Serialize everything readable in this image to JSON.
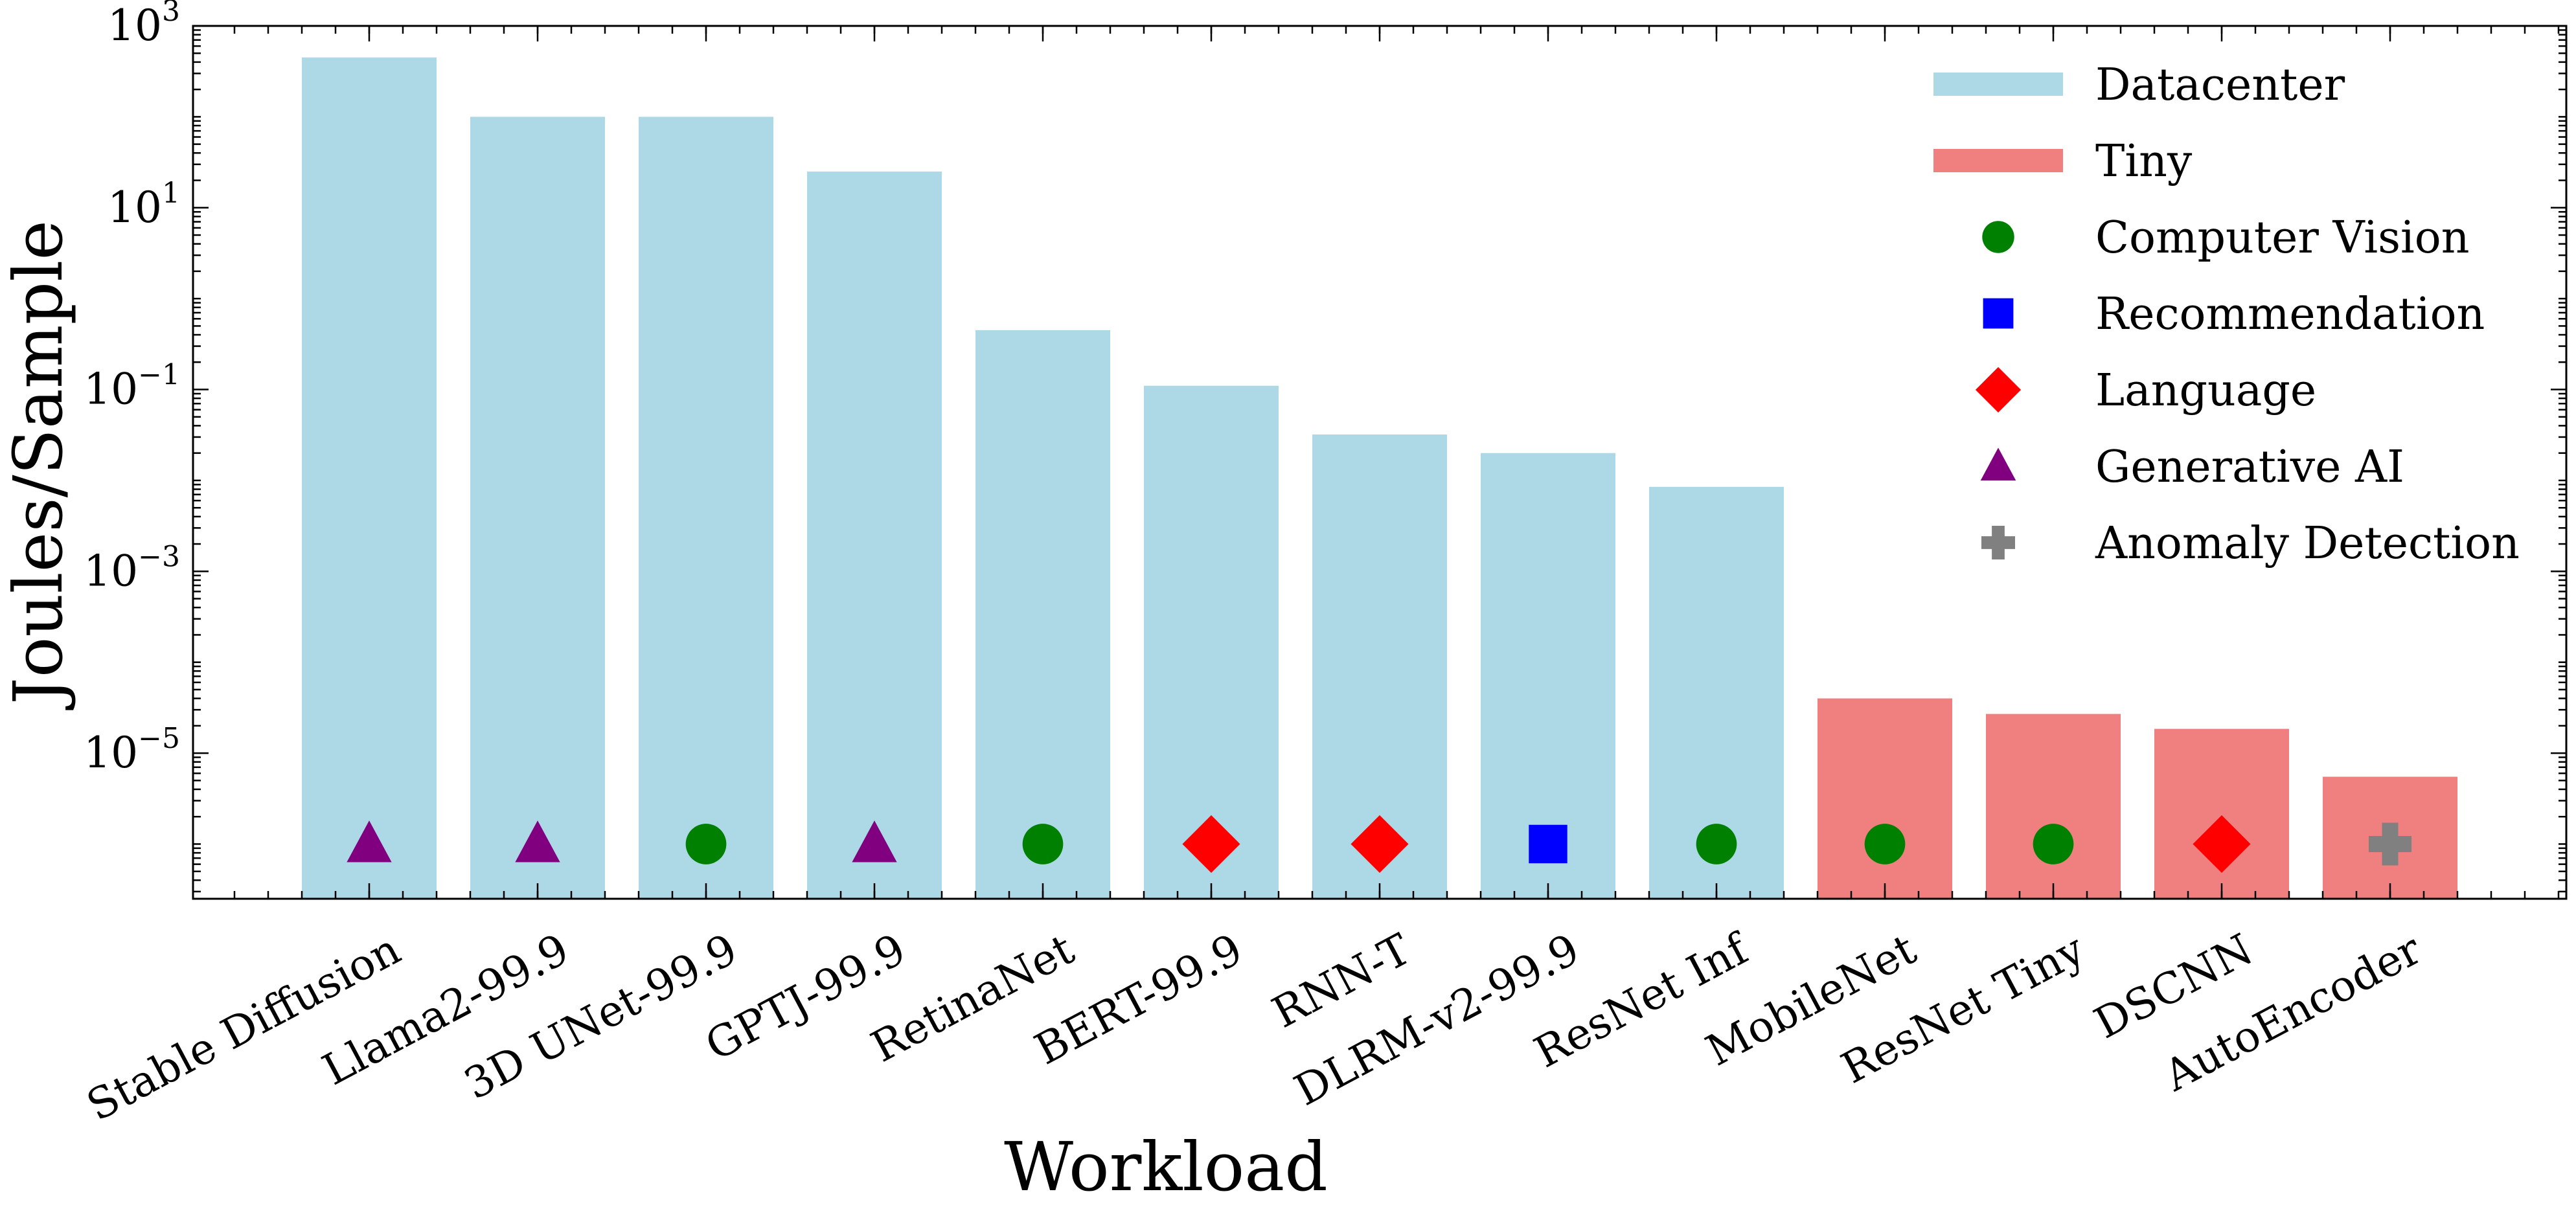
{
  "chart_data": {
    "type": "bar",
    "xlabel": "Workload",
    "ylabel": "Joules/Sample",
    "y_scale": "log",
    "ylim": [
      2.5e-07,
      1000
    ],
    "y_ticks": [
      {
        "base": "10",
        "exp": "3",
        "value": 1000
      },
      {
        "base": "10",
        "exp": "1",
        "value": 10
      },
      {
        "base": "10",
        "exp": "−1",
        "value": 0.1
      },
      {
        "base": "10",
        "exp": "−3",
        "value": 0.001
      },
      {
        "base": "10",
        "exp": "−5",
        "value": 1e-05
      }
    ],
    "categories": [
      "Stable Diffusion",
      "Llama2-99.9",
      "3D UNet-99.9",
      "GPTJ-99.9",
      "RetinaNet",
      "BERT-99.9",
      "RNN-T",
      "DLRM-v2-99.9",
      "ResNet Inf",
      "MobileNet",
      "ResNet Tiny",
      "DSCNN",
      "AutoEncoder"
    ],
    "values": [
      450,
      100,
      100,
      25,
      0.45,
      0.11,
      0.032,
      0.02,
      0.0085,
      4e-05,
      2.7e-05,
      1.85e-05,
      5.5e-06
    ],
    "bar_group": [
      "Datacenter",
      "Datacenter",
      "Datacenter",
      "Datacenter",
      "Datacenter",
      "Datacenter",
      "Datacenter",
      "Datacenter",
      "Datacenter",
      "Tiny",
      "Tiny",
      "Tiny",
      "Tiny"
    ],
    "task": [
      "Generative AI",
      "Generative AI",
      "Computer Vision",
      "Generative AI",
      "Computer Vision",
      "Language",
      "Language",
      "Recommendation",
      "Computer Vision",
      "Computer Vision",
      "Computer Vision",
      "Language",
      "Anomaly Detection"
    ],
    "marker_y": 1e-06,
    "groups": [
      {
        "name": "Datacenter",
        "color": "#add8e6"
      },
      {
        "name": "Tiny",
        "color": "#f08080"
      }
    ],
    "tasks": [
      {
        "name": "Computer Vision",
        "marker": "circle",
        "color": "#008000"
      },
      {
        "name": "Recommendation",
        "marker": "square",
        "color": "#0000ff"
      },
      {
        "name": "Language",
        "marker": "diamond",
        "color": "#ff0000"
      },
      {
        "name": "Generative AI",
        "marker": "triangle",
        "color": "#800080"
      },
      {
        "name": "Anomaly Detection",
        "marker": "plus",
        "color": "#808080"
      }
    ],
    "legend_position": "top-right",
    "grid": false
  }
}
